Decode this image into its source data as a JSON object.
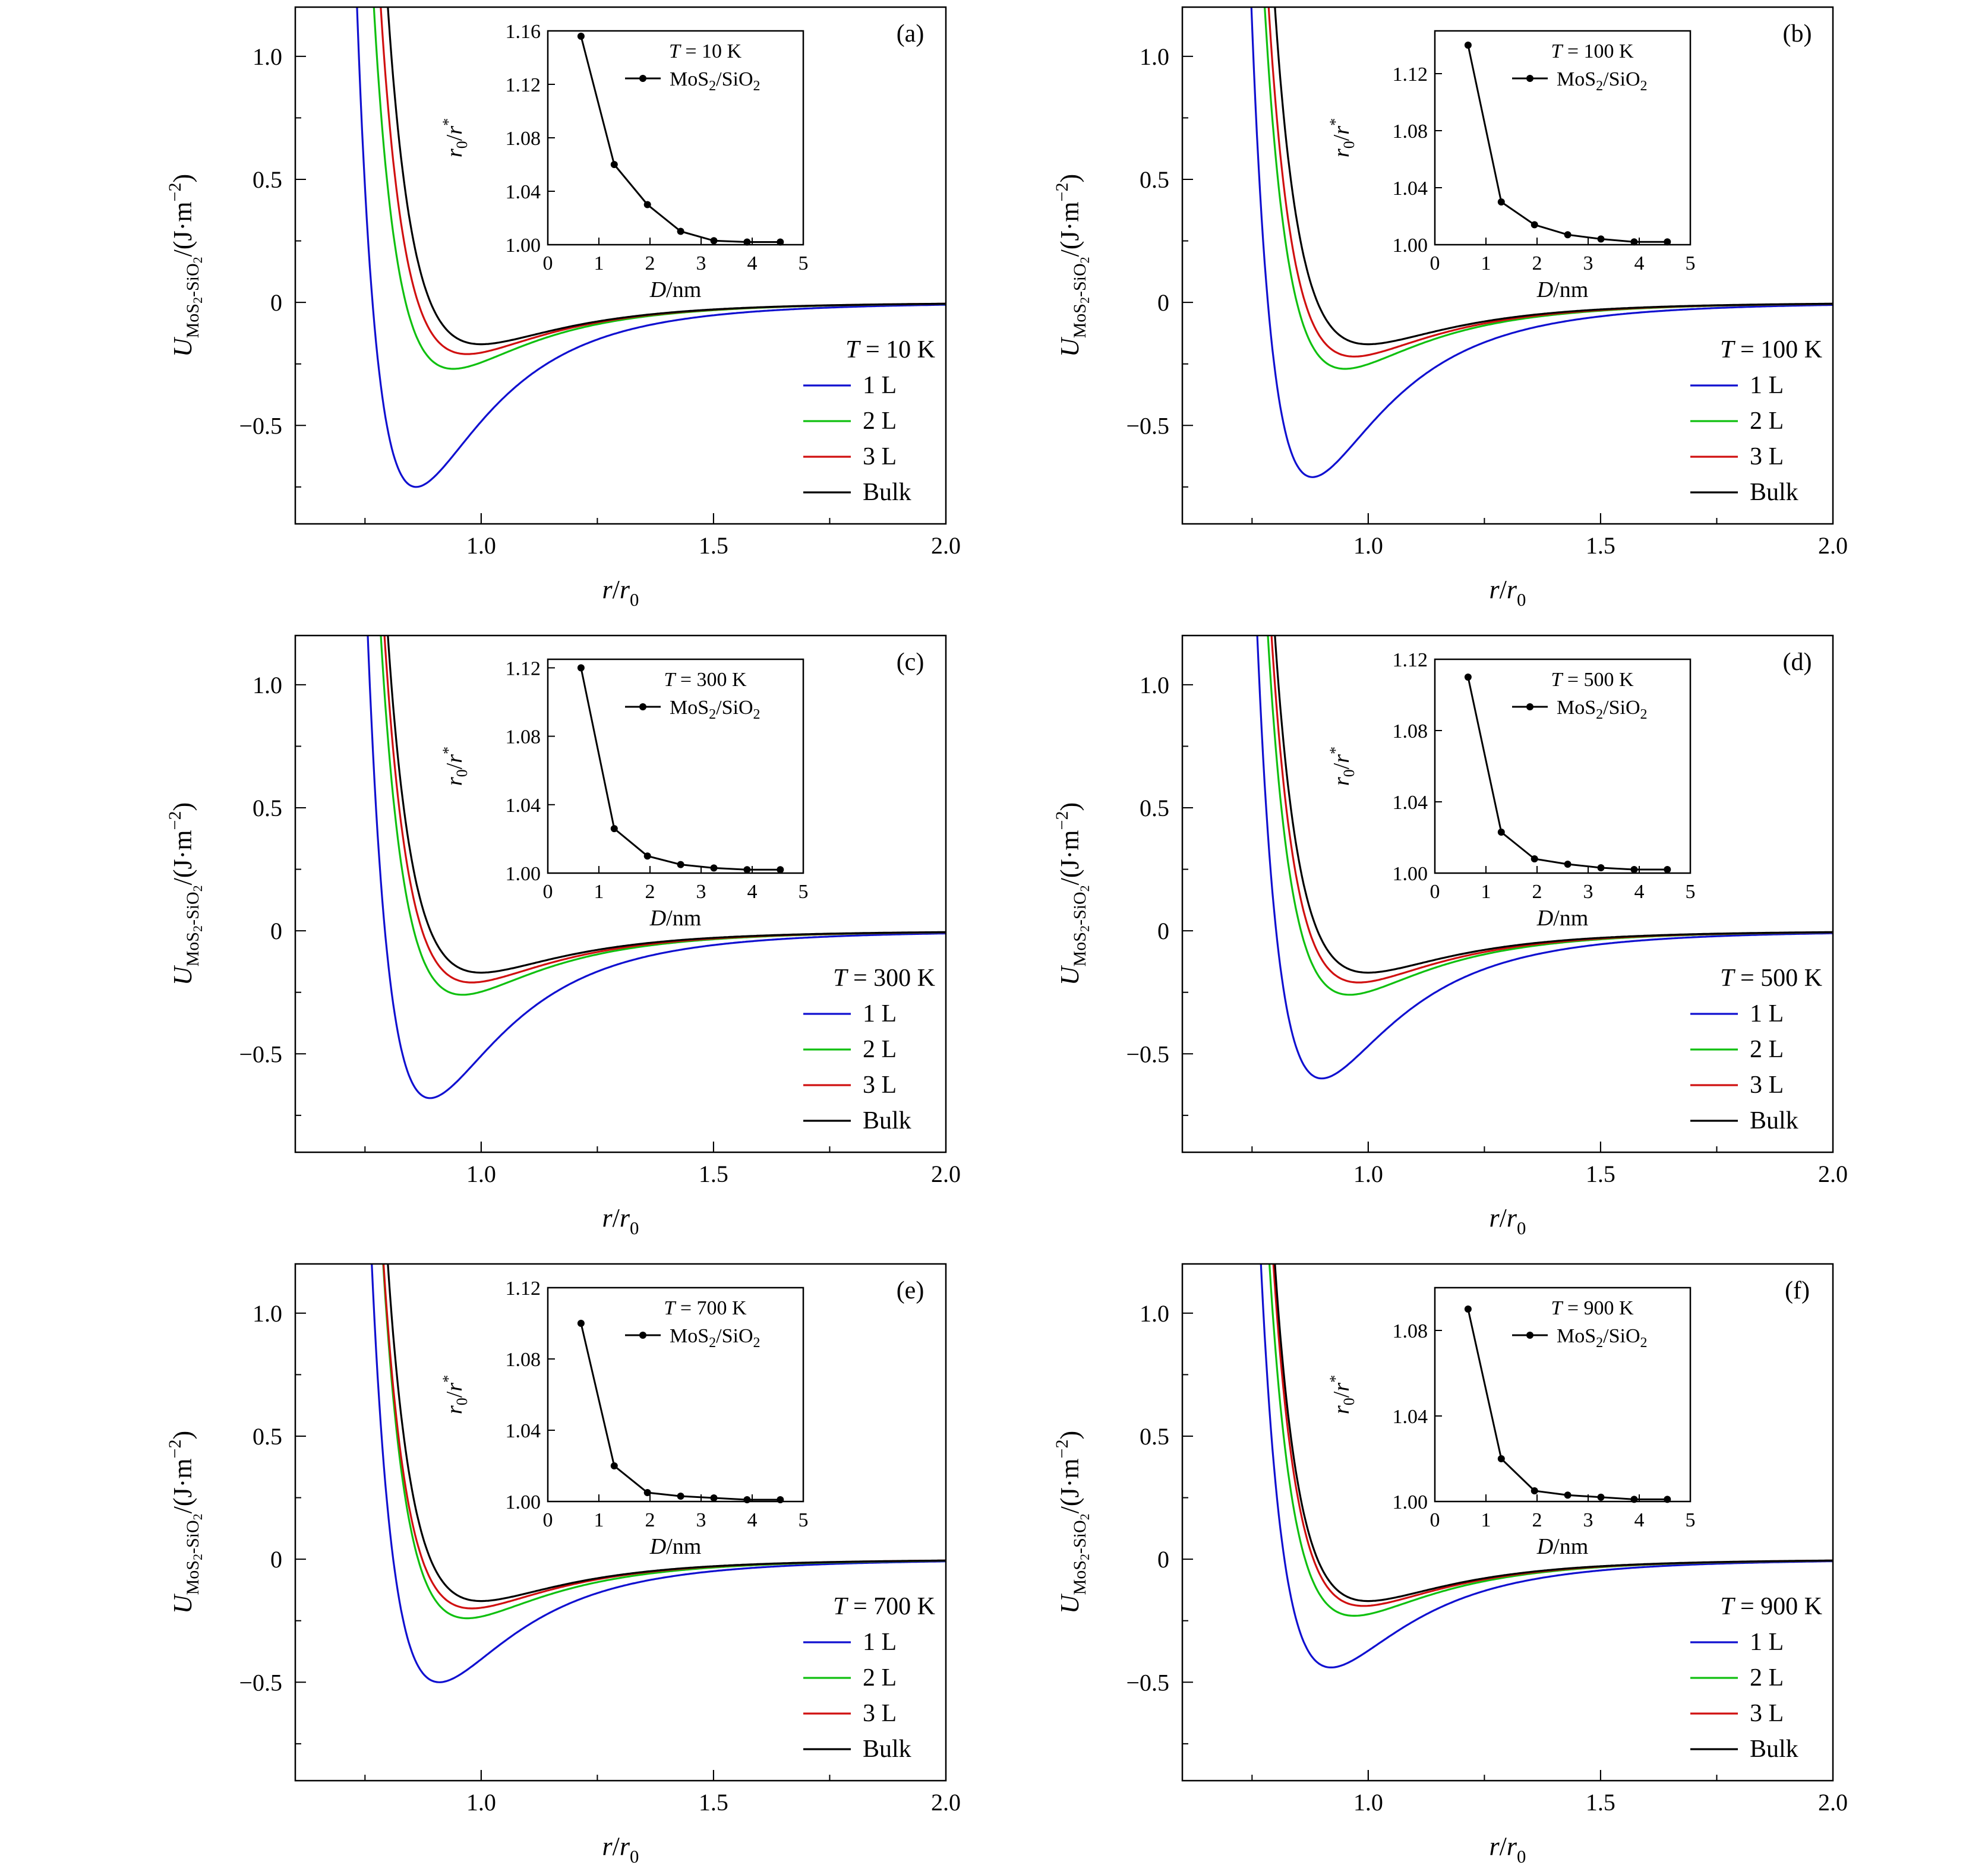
{
  "chart_data": [
    {
      "type": "line",
      "panel_label": "(a)",
      "temperature_label": "T = 10 K",
      "xlabel": "r/r0",
      "ylabel": "U MoS2-SiO2/(J·m−2)",
      "xlim": [
        0.6,
        2.0
      ],
      "ylim": [
        -0.9,
        1.2
      ],
      "xticks": [
        "1.0",
        "1.5",
        "2.0"
      ],
      "yticks": [
        "1.0",
        "0.5",
        "0",
        "−0.5"
      ],
      "series": [
        {
          "name": "1 L",
          "color": "#1010d0",
          "min_x": 0.86,
          "min_y": -0.75
        },
        {
          "name": "2 L",
          "color": "#10c010",
          "min_x": 0.94,
          "min_y": -0.27
        },
        {
          "name": "3 L",
          "color": "#d01010",
          "min_x": 0.97,
          "min_y": -0.21
        },
        {
          "name": "Bulk",
          "color": "#000000",
          "min_x": 1.0,
          "min_y": -0.17
        }
      ],
      "inset": {
        "title": "T = 10 K",
        "legend": "MoS2/SiO2",
        "xlabel": "D/nm",
        "ylabel": "r0/r*",
        "xlim": [
          0,
          5
        ],
        "ylim": [
          1.0,
          1.16
        ],
        "xticks": [
          "0",
          "1",
          "2",
          "3",
          "4",
          "5"
        ],
        "yticks": [
          "1.00",
          "1.04",
          "1.08",
          "1.12",
          "1.16"
        ],
        "x": [
          0.65,
          1.3,
          1.95,
          2.6,
          3.25,
          3.9,
          4.55
        ],
        "y": [
          1.156,
          1.06,
          1.03,
          1.01,
          1.003,
          1.002,
          1.002
        ]
      }
    },
    {
      "type": "line",
      "panel_label": "(b)",
      "temperature_label": "T = 100 K",
      "xlabel": "r/r0",
      "ylabel": "U MoS2-SiO2/(J·m−2)",
      "xlim": [
        0.6,
        2.0
      ],
      "ylim": [
        -0.9,
        1.2
      ],
      "xticks": [
        "1.0",
        "1.5",
        "2.0"
      ],
      "yticks": [
        "1.0",
        "0.5",
        "0",
        "−0.5"
      ],
      "series": [
        {
          "name": "1 L",
          "color": "#1010d0",
          "min_x": 0.88,
          "min_y": -0.71
        },
        {
          "name": "2 L",
          "color": "#10c010",
          "min_x": 0.95,
          "min_y": -0.27
        },
        {
          "name": "3 L",
          "color": "#d01010",
          "min_x": 0.97,
          "min_y": -0.22
        },
        {
          "name": "Bulk",
          "color": "#000000",
          "min_x": 1.0,
          "min_y": -0.17
        }
      ],
      "inset": {
        "title": "T = 100 K",
        "legend": "MoS2/SiO2",
        "xlabel": "D/nm",
        "ylabel": "r0/r*",
        "xlim": [
          0,
          5
        ],
        "ylim": [
          1.0,
          1.15
        ],
        "xticks": [
          "0",
          "1",
          "2",
          "3",
          "4",
          "5"
        ],
        "yticks": [
          "1.00",
          "1.04",
          "1.08",
          "1.12"
        ],
        "x": [
          0.65,
          1.3,
          1.95,
          2.6,
          3.25,
          3.9,
          4.55
        ],
        "y": [
          1.14,
          1.03,
          1.014,
          1.007,
          1.004,
          1.002,
          1.002
        ]
      }
    },
    {
      "type": "line",
      "panel_label": "(c)",
      "temperature_label": "T = 300 K",
      "xlabel": "r/r0",
      "ylabel": "U MoS2-SiO2/(J·m−2)",
      "xlim": [
        0.6,
        2.0
      ],
      "ylim": [
        -0.9,
        1.2
      ],
      "xticks": [
        "1.0",
        "1.5",
        "2.0"
      ],
      "yticks": [
        "1.0",
        "0.5",
        "0",
        "−0.5"
      ],
      "series": [
        {
          "name": "1 L",
          "color": "#1010d0",
          "min_x": 0.89,
          "min_y": -0.68
        },
        {
          "name": "2 L",
          "color": "#10c010",
          "min_x": 0.96,
          "min_y": -0.26
        },
        {
          "name": "3 L",
          "color": "#d01010",
          "min_x": 0.98,
          "min_y": -0.21
        },
        {
          "name": "Bulk",
          "color": "#000000",
          "min_x": 1.0,
          "min_y": -0.17
        }
      ],
      "inset": {
        "title": "T = 300 K",
        "legend": "MoS2/SiO2",
        "xlabel": "D/nm",
        "ylabel": "r0/r*",
        "xlim": [
          0,
          5
        ],
        "ylim": [
          1.0,
          1.125
        ],
        "xticks": [
          "0",
          "1",
          "2",
          "3",
          "4",
          "5"
        ],
        "yticks": [
          "1.00",
          "1.04",
          "1.08",
          "1.12"
        ],
        "x": [
          0.65,
          1.3,
          1.95,
          2.6,
          3.25,
          3.9,
          4.55
        ],
        "y": [
          1.12,
          1.026,
          1.01,
          1.005,
          1.003,
          1.002,
          1.002
        ]
      }
    },
    {
      "type": "line",
      "panel_label": "(d)",
      "temperature_label": "T = 500 K",
      "xlabel": "r/r0",
      "ylabel": "U MoS2-SiO2/(J·m−2)",
      "xlim": [
        0.6,
        2.0
      ],
      "ylim": [
        -0.9,
        1.2
      ],
      "xticks": [
        "1.0",
        "1.5",
        "2.0"
      ],
      "yticks": [
        "1.0",
        "0.5",
        "0",
        "−0.5"
      ],
      "series": [
        {
          "name": "1 L",
          "color": "#1010d0",
          "min_x": 0.9,
          "min_y": -0.6
        },
        {
          "name": "2 L",
          "color": "#10c010",
          "min_x": 0.96,
          "min_y": -0.26
        },
        {
          "name": "3 L",
          "color": "#d01010",
          "min_x": 0.98,
          "min_y": -0.21
        },
        {
          "name": "Bulk",
          "color": "#000000",
          "min_x": 1.0,
          "min_y": -0.17
        }
      ],
      "inset": {
        "title": "T = 500 K",
        "legend": "MoS2/SiO2",
        "xlabel": "D/nm",
        "ylabel": "r0/r*",
        "xlim": [
          0,
          5
        ],
        "ylim": [
          1.0,
          1.12
        ],
        "xticks": [
          "0",
          "1",
          "2",
          "3",
          "4",
          "5"
        ],
        "yticks": [
          "1.00",
          "1.04",
          "1.08",
          "1.12"
        ],
        "x": [
          0.65,
          1.3,
          1.95,
          2.6,
          3.25,
          3.9,
          4.55
        ],
        "y": [
          1.11,
          1.023,
          1.008,
          1.005,
          1.003,
          1.002,
          1.002
        ]
      }
    },
    {
      "type": "line",
      "panel_label": "(e)",
      "temperature_label": "T = 700 K",
      "xlabel": "r/r0",
      "ylabel": "U MoS2-SiO2/(J·m−2)",
      "xlim": [
        0.6,
        2.0
      ],
      "ylim": [
        -0.9,
        1.2
      ],
      "xticks": [
        "1.0",
        "1.5",
        "2.0"
      ],
      "yticks": [
        "1.0",
        "0.5",
        "0",
        "−0.5"
      ],
      "series": [
        {
          "name": "1 L",
          "color": "#1010d0",
          "min_x": 0.91,
          "min_y": -0.5
        },
        {
          "name": "2 L",
          "color": "#10c010",
          "min_x": 0.97,
          "min_y": -0.24
        },
        {
          "name": "3 L",
          "color": "#d01010",
          "min_x": 0.98,
          "min_y": -0.2
        },
        {
          "name": "Bulk",
          "color": "#000000",
          "min_x": 1.0,
          "min_y": -0.17
        }
      ],
      "inset": {
        "title": "T = 700 K",
        "legend": "MoS2/SiO2",
        "xlabel": "D/nm",
        "ylabel": "r0/r*",
        "xlim": [
          0,
          5
        ],
        "ylim": [
          1.0,
          1.12
        ],
        "xticks": [
          "0",
          "1",
          "2",
          "3",
          "4",
          "5"
        ],
        "yticks": [
          "1.00",
          "1.04",
          "1.08",
          "1.12"
        ],
        "x": [
          0.65,
          1.3,
          1.95,
          2.6,
          3.25,
          3.9,
          4.55
        ],
        "y": [
          1.1,
          1.02,
          1.005,
          1.003,
          1.002,
          1.001,
          1.001
        ]
      }
    },
    {
      "type": "line",
      "panel_label": "(f)",
      "temperature_label": "T = 900 K",
      "xlabel": "r/r0",
      "ylabel": "U MoS2-SiO2/(J·m−2)",
      "xlim": [
        0.6,
        2.0
      ],
      "ylim": [
        -0.9,
        1.2
      ],
      "xticks": [
        "1.0",
        "1.5",
        "2.0"
      ],
      "yticks": [
        "1.0",
        "0.5",
        "0",
        "−0.5"
      ],
      "series": [
        {
          "name": "1 L",
          "color": "#1010d0",
          "min_x": 0.92,
          "min_y": -0.44
        },
        {
          "name": "2 L",
          "color": "#10c010",
          "min_x": 0.97,
          "min_y": -0.23
        },
        {
          "name": "3 L",
          "color": "#d01010",
          "min_x": 0.99,
          "min_y": -0.19
        },
        {
          "name": "Bulk",
          "color": "#000000",
          "min_x": 1.0,
          "min_y": -0.17
        }
      ],
      "inset": {
        "title": "T = 900 K",
        "legend": "MoS2/SiO2",
        "xlabel": "D/nm",
        "ylabel": "r0/r*",
        "xlim": [
          0,
          5
        ],
        "ylim": [
          1.0,
          1.1
        ],
        "xticks": [
          "0",
          "1",
          "2",
          "3",
          "4",
          "5"
        ],
        "yticks": [
          "1.00",
          "1.04",
          "1.08"
        ],
        "x": [
          0.65,
          1.3,
          1.95,
          2.6,
          3.25,
          3.9,
          4.55
        ],
        "y": [
          1.09,
          1.02,
          1.005,
          1.003,
          1.002,
          1.001,
          1.001
        ]
      }
    }
  ]
}
